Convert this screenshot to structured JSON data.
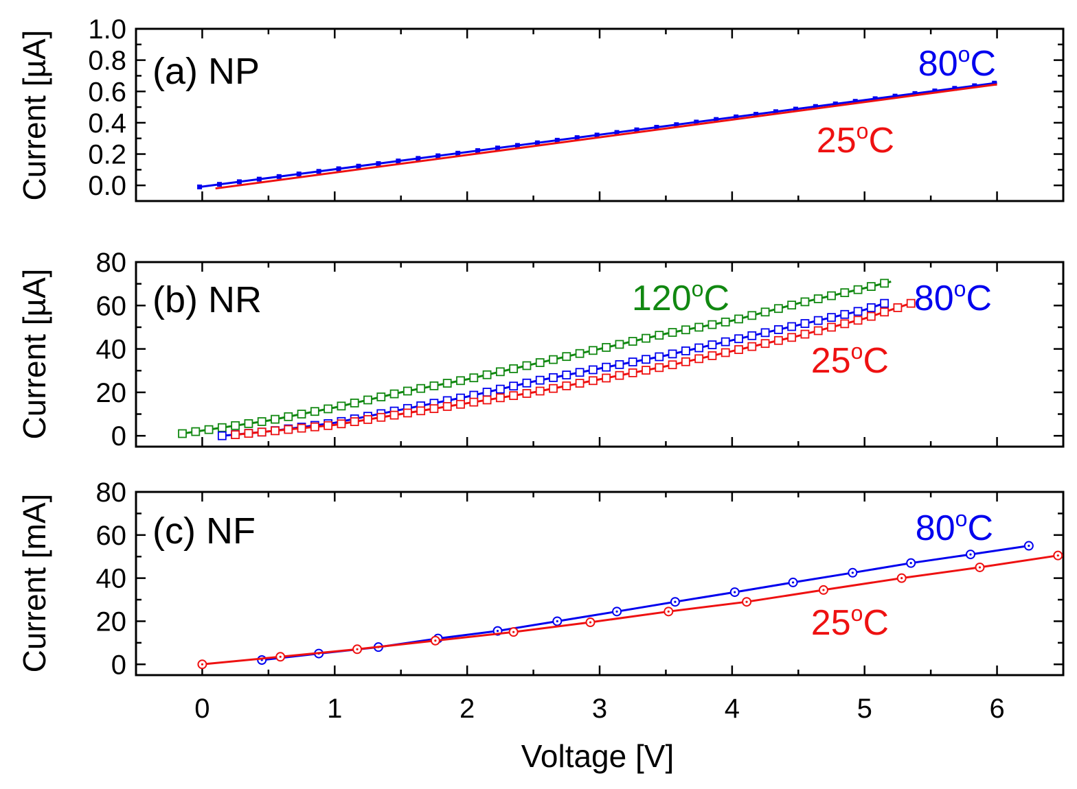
{
  "chart_data": [
    {
      "id": "a",
      "type": "line",
      "panel_label": "(a) NP",
      "ylabel": "Current [µA]",
      "xlim": [
        -0.5,
        6.5
      ],
      "ylim": [
        -0.1,
        1.0
      ],
      "yticks": [
        "0.0",
        "0.2",
        "0.4",
        "0.6",
        "0.8",
        "1.0"
      ],
      "ytick_values": [
        0.0,
        0.2,
        0.4,
        0.6,
        0.8,
        1.0
      ],
      "series": [
        {
          "name": "80°C",
          "label_main": "80",
          "label_sup": "o",
          "label_unit": "C",
          "color": "#0000ee",
          "marker": "filled-square",
          "marker_spacing": 0.15,
          "x": [
            -0.02,
            6.0
          ],
          "y": [
            -0.01,
            0.655
          ]
        },
        {
          "name": "25°C",
          "label_main": "25",
          "label_sup": "o",
          "label_unit": "C",
          "color": "#ee1111",
          "marker": "none",
          "x": [
            0.1,
            6.0
          ],
          "y": [
            -0.02,
            0.645
          ]
        }
      ]
    },
    {
      "id": "b",
      "type": "line",
      "panel_label": "(b) NR",
      "ylabel": "Current [µA]",
      "xlim": [
        -0.5,
        6.5
      ],
      "ylim": [
        -5,
        80
      ],
      "yticks": [
        "0",
        "20",
        "40",
        "60",
        "80"
      ],
      "ytick_values": [
        0,
        20,
        40,
        60,
        80
      ],
      "series": [
        {
          "name": "120°C",
          "label_main": "120",
          "label_sup": "o",
          "label_unit": "C",
          "color": "#118811",
          "marker": "open-square",
          "marker_spacing": 0.1,
          "x": [
            -0.15,
            0.5,
            1.0,
            1.5,
            2.0,
            2.5,
            3.0,
            3.5,
            4.0,
            4.5,
            5.0,
            5.2
          ],
          "y": [
            1.0,
            7.0,
            13.0,
            20.0,
            26.0,
            33.0,
            40.0,
            47.0,
            53.0,
            61.0,
            68.0,
            71.0
          ]
        },
        {
          "name": "80°C",
          "label_main": "80",
          "label_sup": "o",
          "label_unit": "C",
          "color": "#0000ee",
          "marker": "open-square",
          "marker_spacing": 0.1,
          "x": [
            0.15,
            0.5,
            1.0,
            1.5,
            2.0,
            2.5,
            3.0,
            3.5,
            4.0,
            4.5,
            5.0,
            5.15
          ],
          "y": [
            0.0,
            2.0,
            6.0,
            12.0,
            18.0,
            25.0,
            31.0,
            37.0,
            44.0,
            51.0,
            58.0,
            61.0
          ]
        },
        {
          "name": "25°C",
          "label_main": "25",
          "label_sup": "o",
          "label_unit": "C",
          "color": "#ee1111",
          "marker": "open-square",
          "marker_spacing": 0.1,
          "x": [
            0.25,
            0.5,
            1.0,
            1.5,
            2.0,
            2.5,
            3.0,
            3.5,
            4.0,
            4.5,
            5.0,
            5.35
          ],
          "y": [
            0.5,
            2.0,
            5.0,
            10.0,
            15.0,
            20.0,
            26.0,
            32.0,
            39.0,
            46.0,
            54.0,
            61.0
          ]
        }
      ]
    },
    {
      "id": "c",
      "type": "line",
      "panel_label": "(c) NF",
      "ylabel": "Current [mA]",
      "xlabel": "Voltage [V]",
      "xlim": [
        -0.5,
        6.5
      ],
      "ylim": [
        -5,
        80
      ],
      "yticks": [
        "0",
        "20",
        "40",
        "60",
        "80"
      ],
      "ytick_values": [
        0,
        20,
        40,
        60,
        80
      ],
      "xticks": [
        "0",
        "1",
        "2",
        "3",
        "4",
        "5",
        "6"
      ],
      "xtick_values": [
        0,
        1,
        2,
        3,
        4,
        5,
        6
      ],
      "series": [
        {
          "name": "80°C",
          "label_main": "80",
          "label_sup": "o",
          "label_unit": "C",
          "color": "#0000ee",
          "marker": "open-circle-dot",
          "x": [
            0.45,
            0.88,
            1.33,
            1.78,
            2.23,
            2.68,
            3.13,
            3.57,
            4.02,
            4.46,
            4.91,
            5.35,
            5.8,
            6.24
          ],
          "y": [
            2.0,
            5.0,
            8.0,
            12.0,
            15.5,
            20.0,
            24.5,
            29.0,
            33.5,
            38.0,
            42.5,
            47.0,
            51.0,
            55.0
          ]
        },
        {
          "name": "25°C",
          "label_main": "25",
          "label_sup": "o",
          "label_unit": "C",
          "color": "#ee1111",
          "marker": "open-circle-dot",
          "x": [
            0.0,
            0.59,
            1.17,
            1.76,
            2.35,
            2.93,
            3.52,
            4.11,
            4.69,
            5.28,
            5.87,
            6.46
          ],
          "y": [
            0.0,
            3.5,
            7.0,
            11.0,
            15.0,
            19.5,
            24.5,
            29.0,
            34.5,
            40.0,
            45.0,
            50.5
          ]
        }
      ]
    }
  ]
}
